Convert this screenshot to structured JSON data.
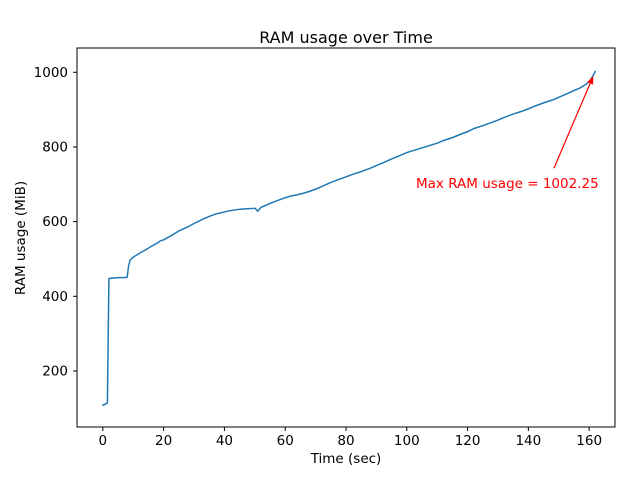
{
  "chart_data": {
    "type": "line",
    "title": "RAM usage over Time",
    "xlabel": "Time (sec)",
    "ylabel": "RAM usage (MiB)",
    "xlim": [
      -8.5,
      168.5
    ],
    "ylim": [
      50,
      1065
    ],
    "xticks": [
      0,
      20,
      40,
      60,
      80,
      100,
      120,
      140,
      160
    ],
    "yticks": [
      200,
      400,
      600,
      800,
      1000
    ],
    "grid": false,
    "legend": "none",
    "line_color": "#1f77b4",
    "axis_color": "#000000",
    "series": [
      {
        "name": "RAM usage",
        "x": [
          0,
          0.5,
          1,
          1.5,
          2,
          3,
          4,
          5,
          6,
          7,
          8,
          8.5,
          9,
          10,
          11,
          12,
          14,
          16,
          18,
          19,
          20,
          21,
          22,
          25,
          28,
          30,
          33,
          35,
          37,
          39,
          41,
          43,
          45,
          47,
          49,
          50,
          51,
          52,
          54,
          56,
          58,
          60,
          62,
          64,
          66,
          68,
          70,
          72,
          75,
          78,
          80,
          82,
          85,
          88,
          90,
          92,
          95,
          98,
          100,
          102,
          104,
          106,
          108,
          110,
          112,
          115,
          118,
          120,
          122,
          125,
          128,
          130,
          132,
          135,
          138,
          140,
          142,
          145,
          148,
          150,
          152,
          155,
          157,
          159,
          160,
          161,
          162
        ],
        "y": [
          108,
          110,
          112,
          115,
          447,
          449,
          449,
          450,
          450,
          450,
          451,
          483,
          497,
          505,
          510,
          515,
          524,
          534,
          543,
          549,
          551,
          556,
          560,
          575,
          586,
          595,
          607,
          614,
          620,
          624,
          628,
          631,
          633,
          634,
          635,
          636,
          628,
          638,
          645,
          652,
          658,
          664,
          669,
          672,
          676,
          681,
          687,
          694,
          705,
          714,
          720,
          726,
          734,
          743,
          750,
          757,
          768,
          778,
          785,
          790,
          795,
          800,
          805,
          810,
          817,
          825,
          835,
          841,
          849,
          857,
          866,
          872,
          879,
          888,
          896,
          902,
          909,
          918,
          926,
          933,
          940,
          951,
          958,
          968,
          975,
          987,
          1002.25
        ],
        "max_value": 1002.25
      }
    ],
    "annotation": {
      "text": "Max RAM usage = 1002.25",
      "color": "#ff0000",
      "xy": [
        162,
        1002.25
      ],
      "xytext": [
        103,
        700
      ]
    }
  }
}
